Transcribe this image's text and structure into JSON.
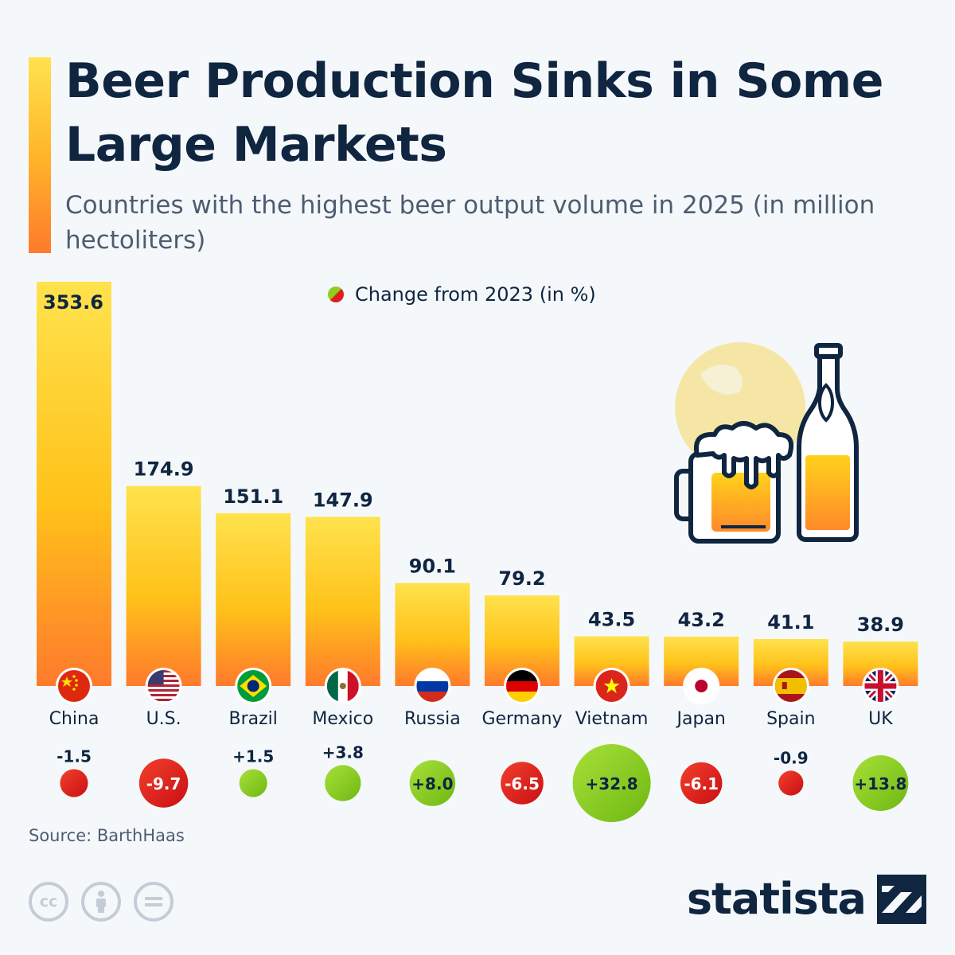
{
  "header": {
    "title": "Beer Production Sinks in Some Large Markets",
    "subtitle": "Countries with the highest beer output volume in 2025 (in million hectoliters)"
  },
  "legend": {
    "label": "Change from 2023 (in %)"
  },
  "footer": {
    "source": "Source: BarthHaas",
    "brand": "statista",
    "license_icons": [
      "cc-icon",
      "attribution-icon",
      "no-derivatives-icon"
    ]
  },
  "colors": {
    "bar_top": "#ffe24d",
    "bar_mid": "#ffc21a",
    "bar_bottom": "#ff7a2c",
    "positive": "#8ccf1c",
    "negative": "#e01d1d",
    "text_dark": "#0f2540",
    "illustration_globe": "#f6e6a5"
  },
  "chart_data": {
    "type": "bar",
    "title": "Beer Production Sinks in Some Large Markets",
    "subtitle": "Countries with the highest beer output volume in 2025 (in million hectoliters)",
    "categories": [
      "China",
      "U.S.",
      "Brazil",
      "Mexico",
      "Russia",
      "Germany",
      "Vietnam",
      "Japan",
      "Spain",
      "UK"
    ],
    "values": [
      353.6,
      174.9,
      151.1,
      147.9,
      90.1,
      79.2,
      43.5,
      43.2,
      41.1,
      38.9
    ],
    "value_labels": [
      "353.6",
      "174.9",
      "151.1",
      "147.9",
      "90.1",
      "79.2",
      "43.5",
      "43.2",
      "41.1",
      "38.9"
    ],
    "change_pct": [
      -1.5,
      -9.7,
      1.5,
      3.8,
      8.0,
      -6.5,
      32.8,
      -6.1,
      -0.9,
      13.8
    ],
    "change_labels": [
      "-1.5",
      "-9.7",
      "+1.5",
      "+3.8",
      "+8.0",
      "-6.5",
      "+32.8",
      "-6.1",
      "-0.9",
      "+13.8"
    ],
    "flags": [
      "china-flag-icon",
      "us-flag-icon",
      "brazil-flag-icon",
      "mexico-flag-icon",
      "russia-flag-icon",
      "germany-flag-icon",
      "vietnam-flag-icon",
      "japan-flag-icon",
      "spain-flag-icon",
      "uk-flag-icon"
    ],
    "ylim": [
      0,
      353.6
    ],
    "grid": false,
    "legend": "top-center"
  }
}
